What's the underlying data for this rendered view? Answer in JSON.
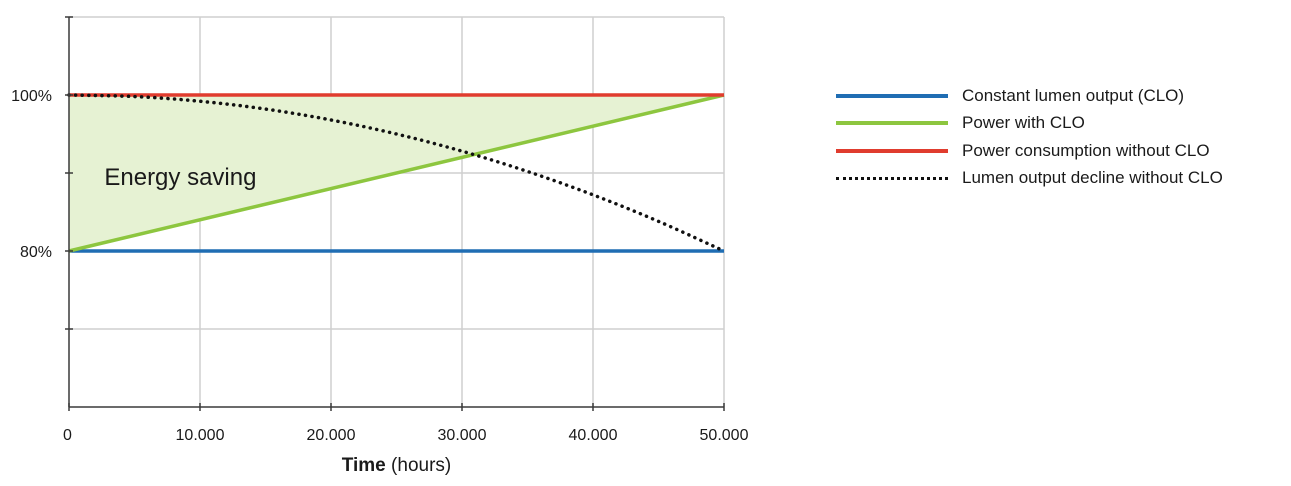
{
  "chart_data": {
    "type": "line",
    "title": "",
    "xlabel_bold": "Time",
    "xlabel_rest": " (hours)",
    "ylabel": "",
    "xlim": [
      0,
      50000
    ],
    "ylim": [
      60,
      110
    ],
    "grid": true,
    "legend_position": "right",
    "x_ticks": [
      {
        "value": 0,
        "label": "0"
      },
      {
        "value": 10000,
        "label": "10.000"
      },
      {
        "value": 20000,
        "label": "20.000"
      },
      {
        "value": 30000,
        "label": "30.000"
      },
      {
        "value": 40000,
        "label": "40.000"
      },
      {
        "value": 50000,
        "label": "50.000"
      }
    ],
    "y_ticks": [
      {
        "value": 70,
        "label": ""
      },
      {
        "value": 80,
        "label": "80%"
      },
      {
        "value": 90,
        "label": ""
      },
      {
        "value": 100,
        "label": "100%"
      },
      {
        "value": 110,
        "label": ""
      }
    ],
    "annotation": {
      "text": "Energy saving",
      "x": 2700,
      "y": 89.5
    },
    "shaded_region": {
      "between": [
        "Power consumption without CLO",
        "Power with CLO"
      ],
      "color": "#e6f2d3"
    },
    "series": [
      {
        "name": "Constant lumen output (CLO)",
        "color": "#1f6db3",
        "style": "solid",
        "x": [
          0,
          50000
        ],
        "y": [
          80,
          80
        ]
      },
      {
        "name": "Power with CLO",
        "color": "#8dc63f",
        "style": "solid",
        "x": [
          0,
          50000
        ],
        "y": [
          80,
          100
        ]
      },
      {
        "name": "Power consumption without CLO",
        "color": "#e03c2e",
        "style": "solid",
        "x": [
          0,
          50000
        ],
        "y": [
          100,
          100
        ]
      },
      {
        "name": "Lumen output decline without CLO",
        "color": "#111111",
        "style": "dotted",
        "x": [
          0,
          5000,
          10000,
          15000,
          20000,
          25000,
          30000,
          35000,
          40000,
          45000,
          50000
        ],
        "y": [
          100,
          99.8,
          99.2,
          98.2,
          96.8,
          95.0,
          92.8,
          90.2,
          87.2,
          83.8,
          80
        ]
      }
    ]
  }
}
